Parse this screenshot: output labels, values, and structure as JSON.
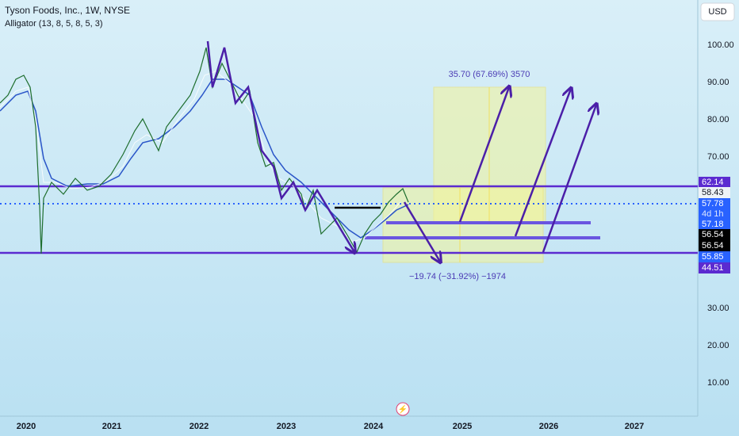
{
  "header": {
    "symbol": "Tyson Foods, Inc., 1W, NYSE",
    "indicator": "Alligator (13, 8, 5, 8, 5, 3)"
  },
  "currency": "USD",
  "price_axis": [
    "100.00",
    "90.00",
    "80.00",
    "70.00",
    "30.00",
    "20.00",
    "10.00"
  ],
  "time_axis": [
    "2020",
    "2021",
    "2022",
    "2023",
    "2024",
    "2025",
    "2026",
    "2027"
  ],
  "price_tags": [
    "62.14",
    "58.43",
    "57.78",
    "4d 1h",
    "57.18",
    "56.54",
    "56.54",
    "55.85",
    "44.51"
  ],
  "annotations": {
    "target": "35.70 (67.69%) 3570",
    "risk": "−19.74 (−31.92%) −1974"
  }
}
